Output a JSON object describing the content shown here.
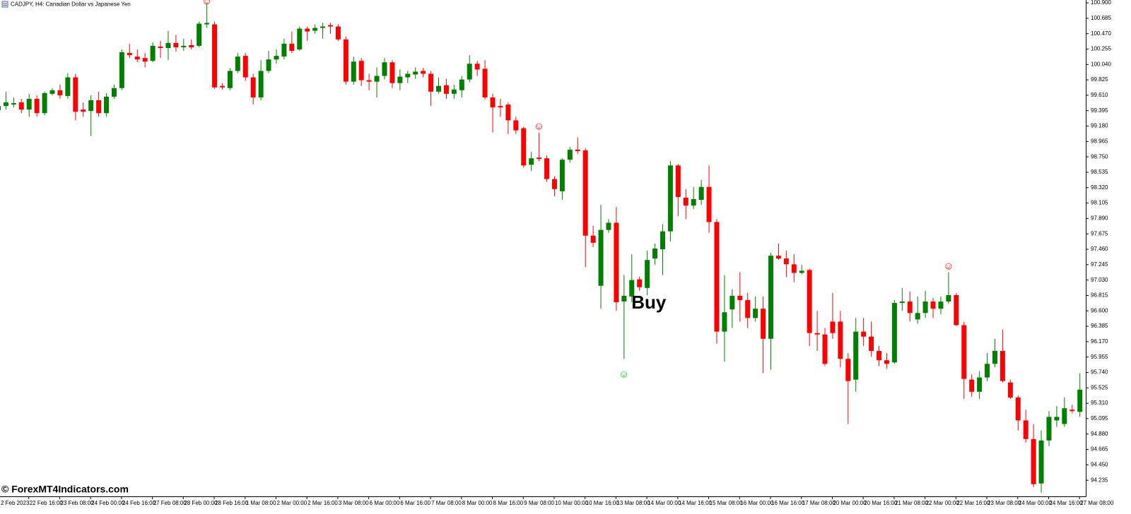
{
  "chart_data": {
    "type": "candlestick",
    "title": "CADJPY, H4:  Canadian Dollar vs Japanese Yen",
    "watermark": "© ForexMT4Indicators.com",
    "up_color": "#008000",
    "down_color": "#ff0000",
    "categories": [
      "2 Feb 2023",
      null,
      null,
      null,
      "22 Feb 16:00",
      null,
      null,
      null,
      "23 Feb 08:00",
      null,
      null,
      null,
      "24 Feb 00:00",
      null,
      null,
      null,
      "24 Feb 16:00",
      null,
      null,
      null,
      "27 Feb 08:00",
      null,
      null,
      null,
      "28 Feb 00:00",
      null,
      null,
      null,
      "28 Feb 16:00",
      null,
      null,
      null,
      "1 Mar 08:00",
      null,
      null,
      null,
      "2 Mar 00:00",
      null,
      null,
      null,
      "2 Mar 16:00",
      null,
      null,
      null,
      "3 Mar 08:00",
      null,
      null,
      null,
      "6 Mar 00:00",
      null,
      null,
      null,
      "6 Mar 16:00",
      null,
      null,
      null,
      "7 Mar 08:00",
      null,
      null,
      null,
      "8 Mar 00:00",
      null,
      null,
      null,
      "8 Mar 16:00",
      null,
      null,
      null,
      "9 Mar 08:00",
      null,
      null,
      null,
      "10 Mar 00:00",
      null,
      null,
      null,
      "10 Mar 16:00",
      null,
      null,
      null,
      "13 Mar 08:00",
      null,
      null,
      null,
      "14 Mar 00:00",
      null,
      null,
      null,
      "14 Mar 16:00",
      null,
      null,
      null,
      "15 Mar 08:00",
      null,
      null,
      null,
      "16 Mar 00:00",
      null,
      null,
      null,
      "16 Mar 16:00",
      null,
      null,
      null,
      "17 Mar 08:00",
      null,
      null,
      null,
      "20 Mar 00:00",
      null,
      null,
      null,
      "20 Mar 16:00",
      null,
      null,
      null,
      "21 Mar 08:00",
      null,
      null,
      null,
      "22 Mar 00:00",
      null,
      null,
      null,
      "22 Mar 16:00",
      null,
      null,
      null,
      "23 Mar 08:00",
      null,
      null,
      null,
      "24 Mar 00:00",
      null,
      null,
      null,
      "24 Mar 16:00",
      null,
      null,
      null,
      "27 Mar 08:00"
    ],
    "open": [
      99.4,
      99.46,
      99.48,
      99.51,
      99.41,
      99.56,
      99.36,
      99.63,
      99.68,
      99.6,
      99.86,
      99.41,
      99.39,
      99.54,
      99.36,
      99.59,
      99.71,
      100.2,
      100.15,
      100.13,
      100.09,
      100.29,
      100.27,
      100.34,
      100.28,
      100.31,
      100.3,
      100.6,
      100.6,
      99.74,
      99.71,
      99.95,
      100.16,
      99.86,
      99.58,
      99.95,
      100.11,
      100.15,
      100.33,
      100.25,
      100.54,
      100.51,
      100.55,
      100.59,
      100.57,
      100.39,
      99.8,
      100.09,
      99.82,
      99.8,
      99.88,
      100.07,
      99.78,
      99.86,
      99.9,
      99.95,
      99.91,
      99.66,
      99.75,
      99.63,
      99.68,
      99.83,
      100.05,
      99.98,
      99.58,
      99.46,
      99.48,
      99.26,
      99.15,
      98.64,
      98.74,
      98.73,
      98.44,
      98.27,
      98.71,
      98.85,
      98.84,
      97.65,
      96.95,
      97.73,
      97.83,
      96.73,
      96.8,
      97.04,
      96.92,
      97.33,
      97.46,
      97.71,
      98.63,
      98.18,
      98.07,
      98.15,
      98.33,
      97.84,
      96.31,
      96.62,
      96.81,
      96.75,
      96.5,
      96.63,
      96.21,
      97.37,
      97.33,
      97.25,
      97.13,
      97.17,
      96.29,
      96.27,
      96.45,
      96.45,
      95.93,
      95.64,
      96.31,
      96.24,
      96.04,
      95.91,
      95.88,
      96.71,
      96.73,
      96.48,
      96.57,
      96.73,
      96.63,
      96.73,
      96.82,
      96.4,
      95.64,
      95.47,
      95.67,
      95.86,
      96.04,
      95.6,
      95.39,
      95.07,
      94.81,
      94.19,
      94.79,
      95.07,
      95.02,
      95.22,
      95.19
    ],
    "high": [
      99.62,
      99.66,
      99.58,
      99.56,
      99.63,
      99.61,
      99.66,
      99.71,
      99.76,
      99.92,
      99.91,
      99.51,
      99.61,
      99.66,
      99.64,
      99.76,
      100.25,
      100.33,
      100.25,
      100.2,
      100.35,
      100.37,
      100.51,
      100.45,
      100.4,
      100.39,
      100.64,
      100.89,
      100.64,
      99.78,
      99.99,
      100.2,
      100.2,
      99.91,
      100.1,
      100.23,
      100.25,
      100.4,
      100.5,
      100.57,
      100.57,
      100.6,
      100.62,
      100.62,
      100.6,
      100.43,
      100.15,
      100.13,
      99.91,
      100.0,
      100.13,
      100.1,
      99.97,
      99.95,
      100.0,
      99.99,
      99.95,
      99.86,
      99.84,
      99.76,
      99.88,
      100.17,
      100.09,
      100.1,
      99.63,
      99.56,
      99.51,
      99.31,
      99.17,
      98.82,
      99.09,
      98.77,
      98.48,
      98.73,
      98.89,
      99.02,
      98.87,
      97.79,
      98.08,
      97.88,
      98.05,
      97.1,
      97.39,
      97.08,
      97.44,
      97.54,
      97.81,
      98.69,
      98.65,
      98.3,
      98.33,
      98.43,
      98.63,
      97.88,
      97.1,
      96.9,
      97.14,
      96.85,
      96.8,
      96.8,
      97.41,
      97.54,
      97.44,
      97.39,
      97.24,
      97.19,
      96.6,
      96.36,
      96.85,
      96.6,
      96.01,
      96.5,
      96.5,
      96.45,
      96.11,
      96.01,
      96.75,
      96.92,
      96.87,
      96.8,
      96.88,
      96.78,
      96.8,
      97.14,
      96.85,
      96.45,
      95.71,
      95.76,
      96.01,
      96.21,
      96.34,
      95.64,
      95.42,
      95.22,
      95.02,
      94.93,
      95.2,
      95.27,
      95.39,
      95.29,
      95.73
    ],
    "low": [
      99.38,
      99.41,
      99.44,
      99.36,
      99.31,
      99.31,
      99.33,
      99.61,
      99.56,
      99.56,
      99.26,
      99.31,
      99.04,
      99.31,
      99.31,
      99.56,
      99.68,
      100.13,
      100.07,
      100.0,
      100.07,
      100.13,
      100.1,
      100.22,
      100.23,
      100.25,
      100.28,
      100.55,
      99.7,
      99.69,
      99.68,
      99.92,
      99.81,
      99.48,
      99.54,
      99.92,
      100.05,
      100.11,
      100.2,
      100.23,
      100.37,
      100.47,
      100.4,
      100.47,
      100.37,
      99.76,
      99.76,
      99.74,
      99.68,
      99.58,
      99.83,
      99.71,
      99.68,
      99.78,
      99.84,
      99.86,
      99.46,
      99.63,
      99.56,
      99.56,
      99.58,
      99.79,
      99.88,
      99.55,
      99.09,
      99.31,
      99.07,
      99.07,
      98.6,
      98.55,
      98.69,
      98.4,
      98.2,
      98.15,
      98.67,
      98.79,
      97.21,
      97.49,
      96.63,
      97.69,
      96.6,
      95.93,
      96.72,
      96.88,
      96.82,
      97.24,
      97.1,
      97.57,
      97.92,
      97.88,
      98.02,
      98.08,
      97.69,
      96.14,
      95.89,
      96.36,
      96.45,
      96.36,
      96.45,
      95.73,
      95.78,
      97.31,
      97.07,
      97.0,
      97.11,
      96.11,
      96.04,
      95.83,
      96.21,
      95.81,
      95.02,
      95.47,
      96.11,
      95.96,
      95.83,
      95.79,
      95.86,
      96.6,
      96.45,
      96.42,
      96.5,
      96.5,
      96.55,
      96.7,
      96.39,
      95.37,
      95.4,
      95.37,
      95.62,
      95.81,
      95.6,
      95.37,
      94.93,
      94.76,
      94.14,
      94.06,
      94.71,
      94.98,
      94.98,
      95.17,
      95.12
    ],
    "close": [
      99.46,
      99.51,
      99.5,
      99.41,
      99.56,
      99.36,
      99.64,
      99.68,
      99.61,
      99.86,
      99.38,
      99.38,
      99.54,
      99.36,
      99.59,
      99.71,
      100.21,
      100.17,
      100.11,
      100.08,
      100.3,
      100.27,
      100.34,
      100.28,
      100.3,
      100.28,
      100.61,
      100.62,
      99.72,
      99.72,
      99.95,
      100.15,
      99.86,
      99.58,
      99.95,
      100.11,
      100.16,
      100.33,
      100.23,
      100.54,
      100.5,
      100.55,
      100.57,
      100.57,
      100.39,
      99.8,
      100.08,
      99.82,
      99.8,
      99.88,
      100.07,
      99.78,
      99.87,
      99.91,
      99.94,
      99.91,
      99.66,
      99.74,
      99.63,
      99.69,
      99.83,
      100.05,
      99.97,
      99.58,
      99.44,
      99.44,
      99.26,
      99.12,
      98.63,
      98.73,
      98.72,
      98.44,
      98.3,
      98.71,
      98.85,
      98.83,
      97.65,
      97.55,
      97.73,
      97.83,
      96.72,
      96.81,
      97.03,
      96.93,
      97.31,
      97.47,
      97.71,
      98.63,
      98.19,
      98.07,
      98.16,
      98.33,
      97.84,
      96.31,
      96.58,
      96.81,
      96.75,
      96.5,
      96.63,
      96.21,
      97.37,
      97.33,
      97.25,
      97.13,
      97.16,
      96.29,
      96.27,
      95.86,
      96.29,
      95.93,
      95.62,
      96.31,
      96.24,
      96.04,
      95.91,
      95.86,
      96.71,
      96.73,
      96.57,
      96.57,
      96.73,
      96.63,
      96.73,
      96.82,
      96.4,
      95.65,
      95.47,
      95.67,
      95.86,
      96.04,
      95.62,
      95.39,
      95.07,
      94.81,
      94.18,
      94.79,
      95.12,
      95.12,
      95.24,
      95.2,
      95.5
    ],
    "ylim": [
      94.01,
      100.94
    ],
    "yticks": [
      {
        "value": 100.9,
        "label": "100.900"
      },
      100.685,
      {
        "value": 100.47,
        "label": "100.470"
      },
      100.255,
      {
        "value": 100.04,
        "label": "100.040"
      },
      99.825,
      {
        "value": 99.61,
        "label": "99.610"
      },
      99.395,
      {
        "value": 99.18,
        "label": "99.180"
      },
      98.965,
      {
        "value": 98.75,
        "label": "98.750"
      },
      98.535,
      {
        "value": 98.32,
        "label": "98.320"
      },
      98.105,
      {
        "value": 97.89,
        "label": "97.890"
      },
      97.675,
      {
        "value": 97.46,
        "label": "97.460"
      },
      97.245,
      {
        "value": 97.03,
        "label": "97.030"
      },
      96.815,
      {
        "value": 96.6,
        "label": "96.600"
      },
      96.385,
      {
        "value": 96.17,
        "label": "96.170"
      },
      95.955,
      {
        "value": 95.74,
        "label": "95.740"
      },
      95.525,
      {
        "value": 95.31,
        "label": "95.310"
      },
      95.095,
      {
        "value": 94.88,
        "label": "94.880"
      },
      94.665,
      {
        "value": 94.45,
        "label": "94.450"
      },
      94.235
    ],
    "signal_symbol": "☺",
    "signals": [
      {
        "index": 27,
        "price": 100.92,
        "color": "#ff0000"
      },
      {
        "index": 70,
        "price": 99.17,
        "color": "#ff0000"
      },
      {
        "index": 81,
        "price": 95.71,
        "color": "#00e000"
      },
      {
        "index": 123,
        "price": 97.22,
        "color": "#ff0000"
      }
    ],
    "annotation": {
      "text": "Buy",
      "index": 82,
      "price": 96.7
    }
  }
}
